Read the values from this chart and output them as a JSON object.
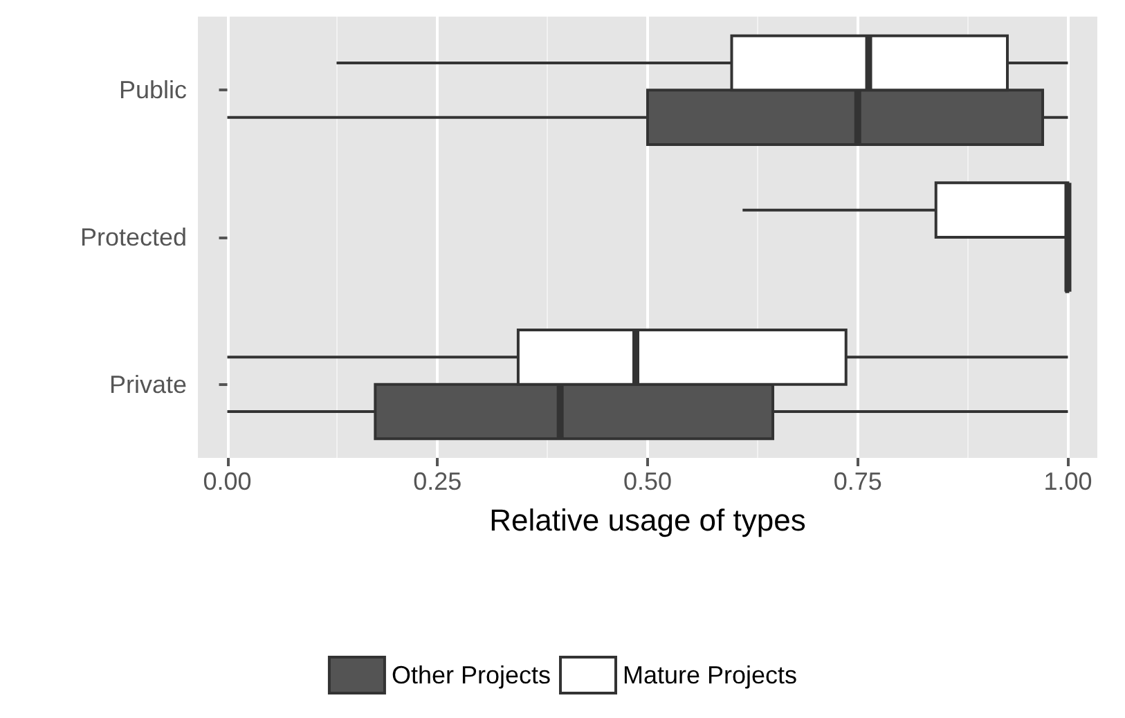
{
  "chart_data": {
    "type": "box",
    "orientation": "horizontal",
    "xlabel": "Relative usage of types",
    "categories": [
      "Public",
      "Protected",
      "Private"
    ],
    "xlim": [
      -0.035,
      1.035
    ],
    "xticks": [
      {
        "value": 0,
        "label": "0.00"
      },
      {
        "value": 0.25,
        "label": "0.25"
      },
      {
        "value": 0.5,
        "label": "0.50"
      },
      {
        "value": 0.75,
        "label": "0.75"
      },
      {
        "value": 1,
        "label": "1.00"
      }
    ],
    "grid": true,
    "legend": "bottom",
    "series": [
      {
        "name": "Other Projects",
        "color": "#545454",
        "boxes": [
          {
            "low": 0,
            "q1": 0.5,
            "median": 0.75,
            "q3": 0.97,
            "high": 1
          },
          {
            "low": 1,
            "q1": 1,
            "median": 1,
            "q3": 1,
            "high": 1
          },
          {
            "low": 0,
            "q1": 0.176,
            "median": 0.396,
            "q3": 0.649,
            "high": 1
          }
        ]
      },
      {
        "name": "Mature Projects",
        "color": "#ffffff",
        "boxes": [
          {
            "low": 0.13,
            "q1": 0.6,
            "median": 0.763,
            "q3": 0.928,
            "high": 1
          },
          {
            "low": 0.613,
            "q1": 0.843,
            "median": 1,
            "q3": 1,
            "high": 1
          },
          {
            "low": 0,
            "q1": 0.346,
            "median": 0.486,
            "q3": 0.736,
            "high": 1
          }
        ]
      }
    ]
  }
}
